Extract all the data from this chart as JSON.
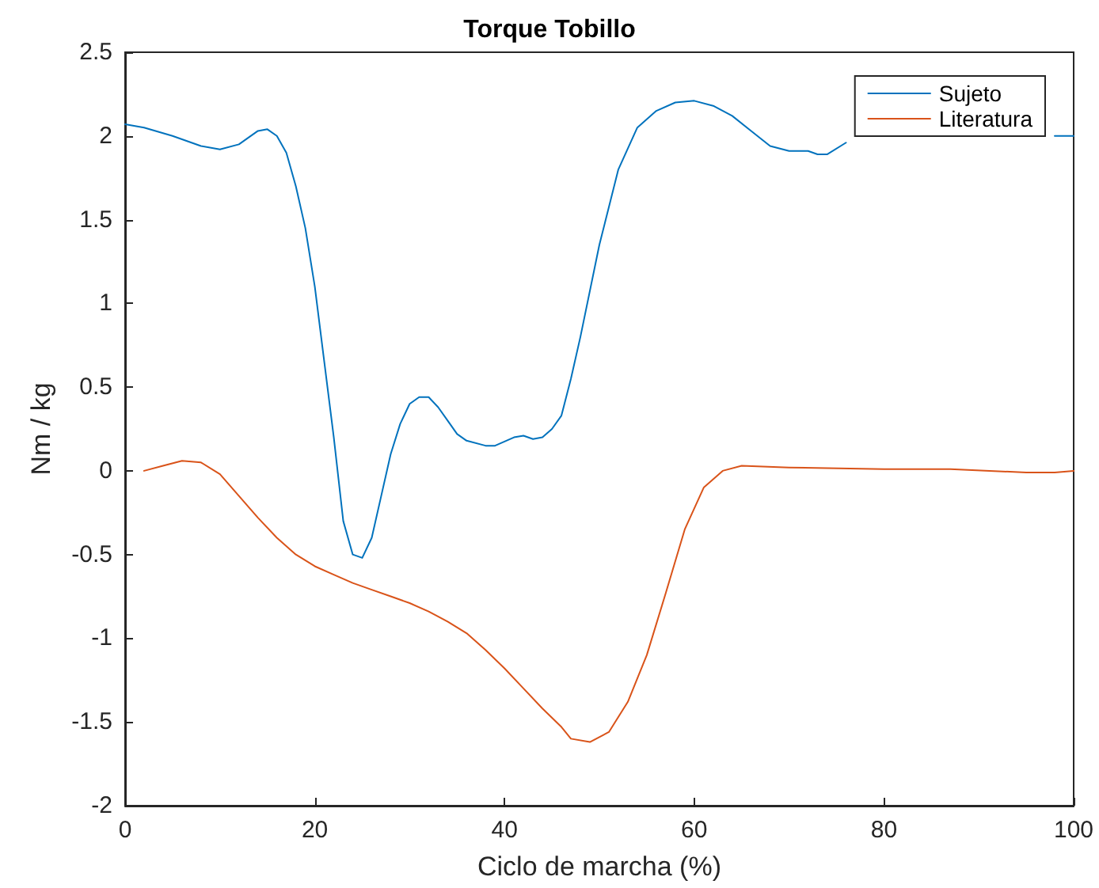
{
  "chart_data": {
    "type": "line",
    "title": "Torque Tobillo",
    "xlabel": "Ciclo de marcha (%)",
    "ylabel": "Nm / kg",
    "xlim": [
      0,
      100
    ],
    "xticks": [
      0,
      20,
      40,
      60,
      80,
      100
    ],
    "ylim": [
      -2,
      2.5
    ],
    "yticks": [
      -2,
      -1.5,
      -1,
      -0.5,
      0,
      0.5,
      1,
      1.5,
      2,
      2.5
    ],
    "grid": false,
    "legend": "top right",
    "marker": "none",
    "line_style": "solid",
    "series": [
      {
        "name": "Sujeto",
        "color": "#0072bd",
        "x": [
          0,
          2,
          5,
          8,
          10,
          12,
          14,
          15,
          16,
          17,
          18,
          19,
          20,
          21,
          22,
          23,
          24,
          25,
          26,
          27,
          28,
          29,
          30,
          31,
          32,
          33,
          34,
          35,
          36,
          38,
          39,
          41,
          42,
          43,
          44,
          45,
          46,
          47,
          48,
          50,
          52,
          54,
          56,
          58,
          60,
          62,
          64,
          66,
          68,
          70,
          72,
          73,
          74,
          76,
          78,
          98,
          100
        ],
        "values": [
          2.07,
          2.05,
          2.0,
          1.94,
          1.92,
          1.95,
          2.03,
          2.04,
          2.0,
          1.9,
          1.7,
          1.45,
          1.1,
          0.65,
          0.2,
          -0.3,
          -0.5,
          -0.52,
          -0.4,
          -0.15,
          0.1,
          0.28,
          0.4,
          0.44,
          0.44,
          0.38,
          0.3,
          0.22,
          0.18,
          0.15,
          0.15,
          0.2,
          0.21,
          0.19,
          0.2,
          0.25,
          0.33,
          0.55,
          0.8,
          1.35,
          1.8,
          2.05,
          2.15,
          2.2,
          2.21,
          2.18,
          2.12,
          2.03,
          1.94,
          1.91,
          1.91,
          1.89,
          1.89,
          1.96,
          null,
          2.0,
          2.0
        ]
      },
      {
        "name": "Literatura",
        "color": "#d95319",
        "x": [
          2,
          4,
          6,
          8,
          10,
          12,
          14,
          16,
          18,
          20,
          22,
          24,
          26,
          28,
          30,
          32,
          34,
          36,
          38,
          40,
          42,
          44,
          46,
          47,
          49,
          51,
          53,
          55,
          57,
          59,
          61,
          63,
          65,
          70,
          80,
          87,
          95,
          98,
          100
        ],
        "values": [
          0.0,
          0.03,
          0.06,
          0.05,
          -0.02,
          -0.15,
          -0.28,
          -0.4,
          -0.5,
          -0.57,
          -0.62,
          -0.67,
          -0.71,
          -0.75,
          -0.79,
          -0.84,
          -0.9,
          -0.97,
          -1.07,
          -1.18,
          -1.3,
          -1.42,
          -1.53,
          -1.6,
          -1.62,
          -1.56,
          -1.38,
          -1.1,
          -0.73,
          -0.35,
          -0.1,
          0.0,
          0.03,
          0.02,
          0.01,
          0.01,
          -0.01,
          -0.01,
          0.0
        ]
      }
    ]
  }
}
